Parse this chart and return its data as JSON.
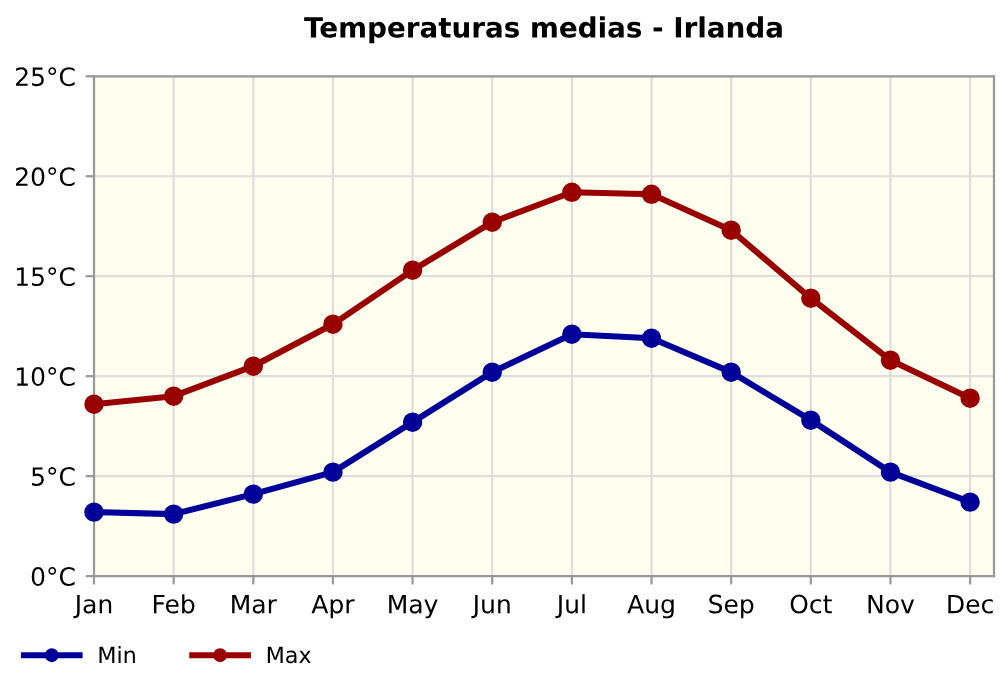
{
  "chart_data": {
    "type": "line",
    "title": "Temperaturas medias - Irlanda",
    "categories": [
      "Jan",
      "Feb",
      "Mar",
      "Apr",
      "May",
      "Jun",
      "Jul",
      "Aug",
      "Sep",
      "Oct",
      "Nov",
      "Dec"
    ],
    "series": [
      {
        "name": "Min",
        "color": "#000099",
        "values": [
          3.2,
          3.1,
          4.1,
          5.2,
          7.7,
          10.2,
          12.1,
          11.9,
          10.2,
          7.8,
          5.2,
          3.7
        ]
      },
      {
        "name": "Max",
        "color": "#990000",
        "values": [
          8.6,
          9.0,
          10.5,
          12.6,
          15.3,
          17.7,
          19.2,
          19.1,
          17.3,
          13.9,
          10.8,
          8.9
        ]
      }
    ],
    "ylim": [
      0,
      25
    ],
    "yticks": [
      {
        "value": 0,
        "label": "0°C"
      },
      {
        "value": 5,
        "label": "5°C"
      },
      {
        "value": 10,
        "label": "10°C"
      },
      {
        "value": 15,
        "label": "15°C"
      },
      {
        "value": 20,
        "label": "20°C"
      },
      {
        "value": 25,
        "label": "25°C"
      }
    ],
    "grid": true,
    "legend": "bottom left",
    "marker": "circle",
    "line_style": "solid"
  }
}
